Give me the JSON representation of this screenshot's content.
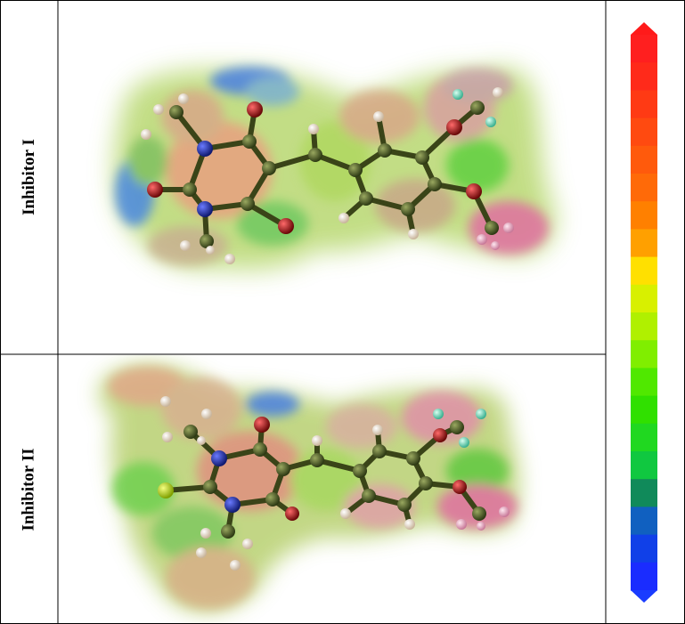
{
  "rows": [
    {
      "label": "Inhibitor I"
    },
    {
      "label": "Inhibitor II"
    }
  ],
  "color_scale": {
    "orientation": "vertical",
    "top_color": "#ff1a1a",
    "bottom_color": "#1a3cff",
    "colors": [
      "#ff1f1f",
      "#ff2a1a",
      "#ff3a14",
      "#ff4a10",
      "#ff5a0c",
      "#ff6a08",
      "#ff8000",
      "#ffa000",
      "#ffe000",
      "#d8f000",
      "#b0f000",
      "#80ee00",
      "#50e800",
      "#30e000",
      "#20d820",
      "#10c840",
      "#108a5a",
      "#1060c0",
      "#1040e8",
      "#1a2cff"
    ]
  },
  "atom_colors": {
    "carbon": "#4a5a2a",
    "nitrogen": "#1a2aa0",
    "oxygen": "#b01010",
    "hydrogen": "#f0e0c8",
    "sulfur": "#c8f000"
  }
}
